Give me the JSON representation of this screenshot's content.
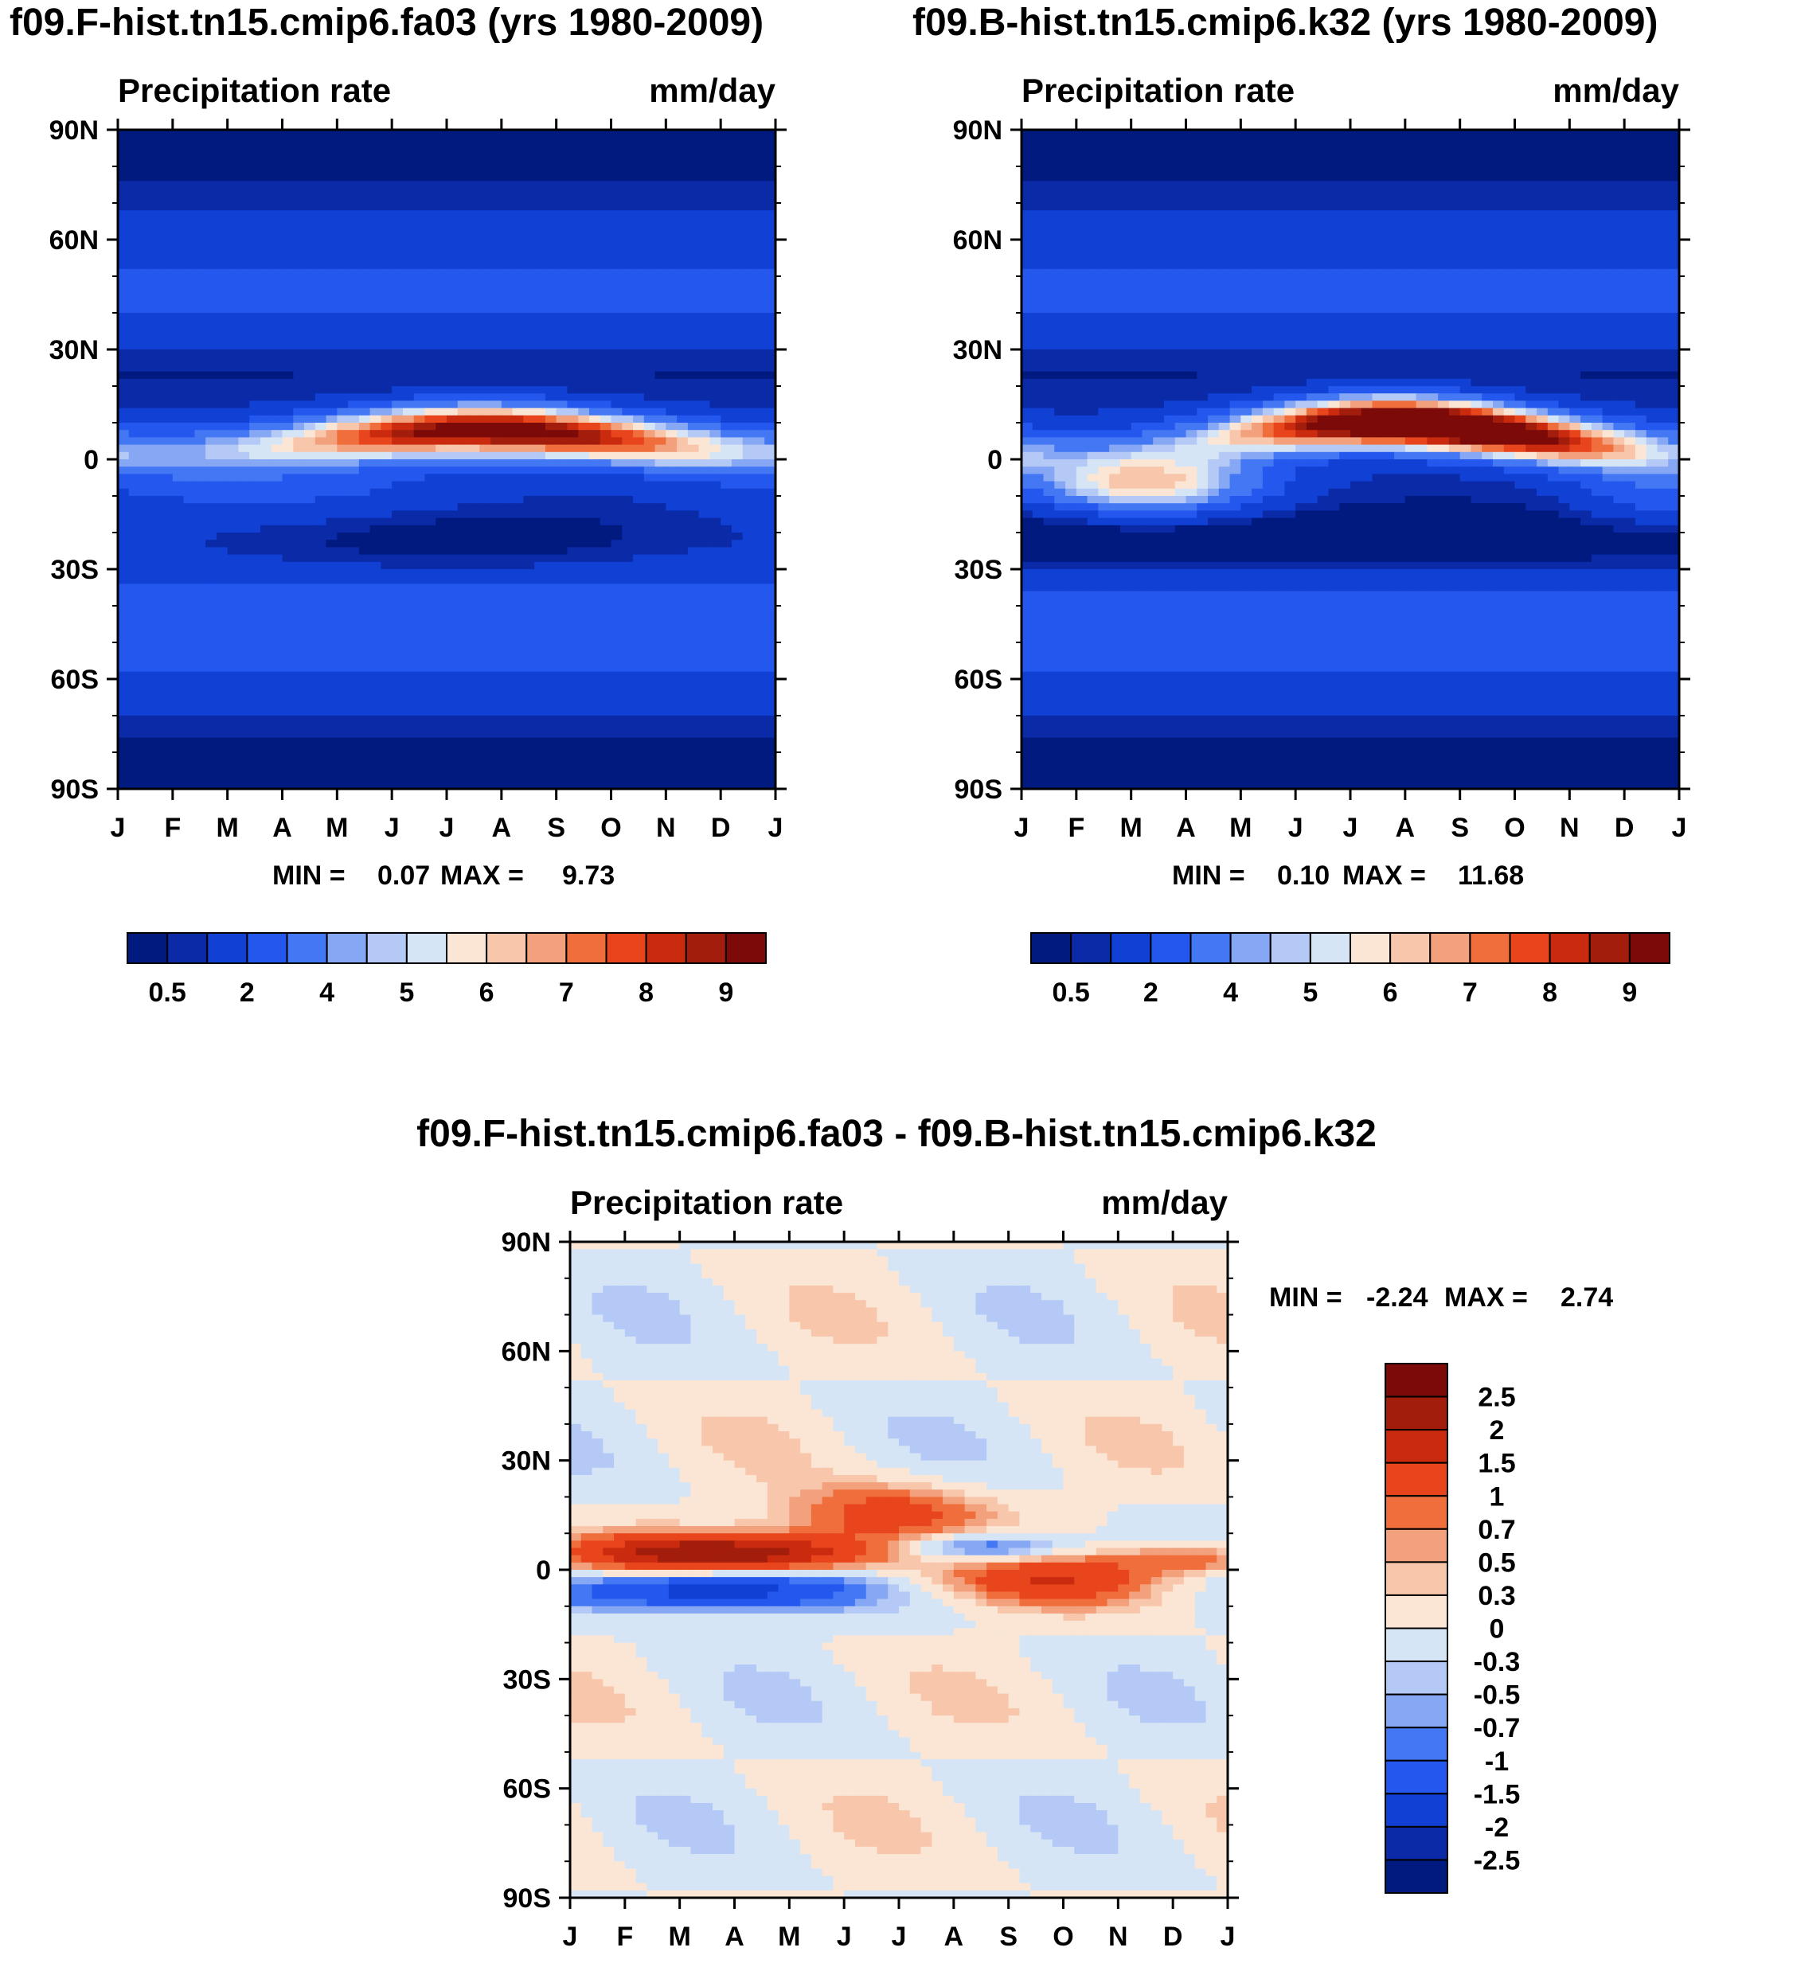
{
  "colors": {
    "seq": [
      "#001a7f",
      "#0a2aa8",
      "#1140d4",
      "#2357ee",
      "#4377f3",
      "#86a7f4",
      "#b4c9f5",
      "#d6e5f6",
      "#fbe6d5",
      "#f8c7ab",
      "#f3a07c",
      "#f06d3c",
      "#e8451c",
      "#ca2a0e",
      "#a31d0c",
      "#7c0a09"
    ],
    "div": [
      "#001a7f",
      "#0a2aa8",
      "#1140d4",
      "#2357ee",
      "#4377f3",
      "#86a7f4",
      "#b4c9f5",
      "#d6e5f6",
      "#fbe6d5",
      "#f8c7ab",
      "#f3a07c",
      "#f06d3c",
      "#e8451c",
      "#ca2a0e",
      "#a31d0c",
      "#7c0a09"
    ]
  },
  "chart_data": [
    {
      "id": "panel-a",
      "type": "heatmap",
      "title": "f09.F-hist.tn15.cmip6.fa03 (yrs 1980-2009)",
      "left_label": "Precipitation rate",
      "right_label": "mm/day",
      "xlabels": [
        "J",
        "F",
        "M",
        "A",
        "M",
        "J",
        "J",
        "A",
        "S",
        "O",
        "N",
        "D",
        "J"
      ],
      "ylabels": [
        "90N",
        "60N",
        "30N",
        "0",
        "30S",
        "60S",
        "90S"
      ],
      "ylim": [
        -90,
        90
      ],
      "min_label": "MIN =",
      "min_value": "0.07",
      "max_label": "MAX =",
      "max_value": "9.73",
      "colorbar_labels": [
        "0.5",
        "2",
        "4",
        "5",
        "6",
        "7",
        "8",
        "9"
      ],
      "levels": [
        0.5,
        1,
        2,
        3,
        4,
        4.5,
        5,
        5.5,
        6,
        6.5,
        7,
        7.5,
        8,
        8.5,
        9
      ]
    },
    {
      "id": "panel-b",
      "type": "heatmap",
      "title": "f09.B-hist.tn15.cmip6.k32 (yrs 1980-2009)",
      "left_label": "Precipitation rate",
      "right_label": "mm/day",
      "xlabels": [
        "J",
        "F",
        "M",
        "A",
        "M",
        "J",
        "J",
        "A",
        "S",
        "O",
        "N",
        "D",
        "J"
      ],
      "ylabels": [
        "90N",
        "60N",
        "30N",
        "0",
        "30S",
        "60S",
        "90S"
      ],
      "ylim": [
        -90,
        90
      ],
      "min_label": "MIN =",
      "min_value": "0.10",
      "max_label": "MAX =",
      "max_value": "11.68",
      "colorbar_labels": [
        "0.5",
        "2",
        "4",
        "5",
        "6",
        "7",
        "8",
        "9"
      ],
      "levels": [
        0.5,
        1,
        2,
        3,
        4,
        4.5,
        5,
        5.5,
        6,
        6.5,
        7,
        7.5,
        8,
        8.5,
        9
      ]
    },
    {
      "id": "panel-diff",
      "type": "heatmap",
      "title": "f09.F-hist.tn15.cmip6.fa03 - f09.B-hist.tn15.cmip6.k32",
      "left_label": "Precipitation rate",
      "right_label": "mm/day",
      "xlabels": [
        "J",
        "F",
        "M",
        "A",
        "M",
        "J",
        "J",
        "A",
        "S",
        "O",
        "N",
        "D",
        "J"
      ],
      "ylabels": [
        "90N",
        "60N",
        "30N",
        "0",
        "30S",
        "60S",
        "90S"
      ],
      "ylim": [
        -90,
        90
      ],
      "min_label": "MIN =",
      "min_value": "-2.24",
      "max_label": "MAX =",
      "max_value": "2.74",
      "colorbar_labels": [
        "2.5",
        "2",
        "1.5",
        "1",
        "0.7",
        "0.5",
        "0.3",
        "0",
        "-0.3",
        "-0.5",
        "-0.7",
        "-1",
        "-1.5",
        "-2",
        "-2.5"
      ],
      "levels": [
        -2.5,
        -2,
        -1.5,
        -1,
        -0.7,
        -0.5,
        -0.3,
        0,
        0.3,
        0.5,
        0.7,
        1,
        1.5,
        2,
        2.5
      ]
    }
  ]
}
